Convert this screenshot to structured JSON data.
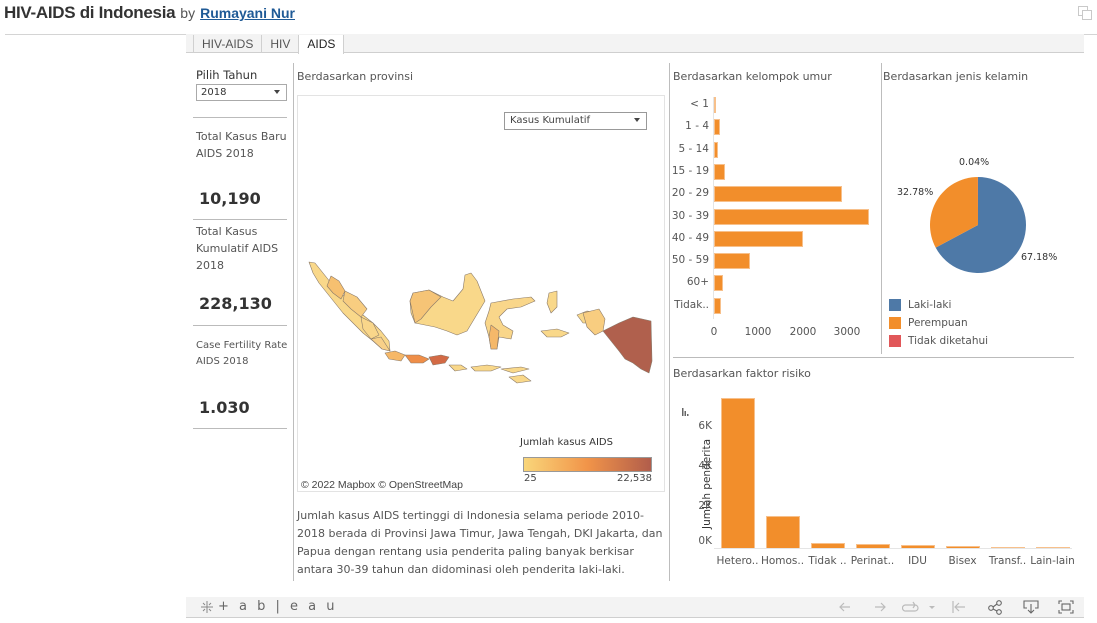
{
  "header": {
    "title": "HIV-AIDS di Indonesia",
    "by": "by",
    "author": "Rumayani Nur",
    "window_icon": "restore-window-icon"
  },
  "tabs": [
    {
      "label": "HIV-AIDS",
      "active": false
    },
    {
      "label": "HIV",
      "active": false
    },
    {
      "label": "AIDS",
      "active": true
    }
  ],
  "filters": {
    "year_label": "Pilih Tahun",
    "year_value": "2018",
    "map_measure_value": "Kasus Kumulatif"
  },
  "kpis": [
    {
      "title": "Total Kasus Baru AIDS 2018",
      "value": "10,190"
    },
    {
      "title": "Total Kasus Kumulatif AIDS 2018",
      "value": "228,130"
    },
    {
      "title": "Case Fertility Rate AIDS 2018",
      "value": "1.030"
    }
  ],
  "map": {
    "title": "Berdasarkan provinsi",
    "legend_title": "Jumlah kasus AIDS",
    "legend_min": "25",
    "legend_max": "22,538",
    "legend_colors": [
      "#f9d67a",
      "#f19449",
      "#b15d4b"
    ],
    "credit": "© 2022 Mapbox  © OpenStreetMap",
    "description": "Jumlah kasus AIDS tertinggi di Indonesia selama periode 2010-2018 berada di Provinsi Jawa Timur, Jawa Tengah,  DKI Jakarta, dan Papua dengan rentang usia penderita paling banyak berkisar antara 30-39 tahun dan didominasi oleh penderita laki-laki."
  },
  "age_chart": {
    "title": "Berdasarkan kelompok umur"
  },
  "gender_chart": {
    "title": "Berdasarkan jenis kelamin"
  },
  "risk_chart": {
    "title": "Berdasarkan faktor risiko",
    "ylabel": "Jumlah penderita"
  },
  "chart_data": [
    {
      "type": "bar",
      "orientation": "horizontal",
      "title": "Berdasarkan kelompok umur",
      "categories": [
        "< 1",
        "1 - 4",
        "5 - 14",
        "15 - 19",
        "20 - 29",
        "30 - 39",
        "40 - 49",
        "50 - 59",
        "60+",
        "Tidak.."
      ],
      "values": [
        20,
        130,
        90,
        250,
        2870,
        3480,
        2000,
        810,
        200,
        150
      ],
      "xticks": [
        "0",
        "1000",
        "2000",
        "3000"
      ],
      "xlim": [
        0,
        3600
      ],
      "color": "#f28e2b",
      "xlabel": "",
      "ylabel": ""
    },
    {
      "type": "pie",
      "title": "Berdasarkan jenis kelamin",
      "categories": [
        "Laki-laki",
        "Perempuan",
        "Tidak diketahui"
      ],
      "values": [
        67.18,
        32.78,
        0.04
      ],
      "labels": [
        "67.18%",
        "32.78%",
        "0.04%"
      ],
      "colors": [
        "#4e79a7",
        "#f28e2b",
        "#e15759"
      ],
      "legend_position": "bottom"
    },
    {
      "type": "bar",
      "orientation": "vertical",
      "title": "Berdasarkan faktor risiko",
      "categories": [
        "Hetero..",
        "Homos..",
        "Tidak ..",
        "Perinat..",
        "IDU",
        "Bisex",
        "Transf..",
        "Lain-lain"
      ],
      "values": [
        7500,
        1600,
        250,
        180,
        130,
        100,
        20,
        20
      ],
      "yticks": [
        "0K",
        "2K",
        "4K",
        "6K"
      ],
      "ylim": [
        0,
        7800
      ],
      "ylabel": "Jumlah penderita",
      "xlabel": "",
      "color": "#f28e2b"
    }
  ],
  "footer": {
    "logo": "+ a b | e a u",
    "icons": [
      "undo-icon",
      "redo-icon",
      "revert-icon",
      "revert-dropdown-icon",
      "reset-icon",
      "share-icon",
      "download-icon",
      "fullscreen-icon"
    ]
  }
}
